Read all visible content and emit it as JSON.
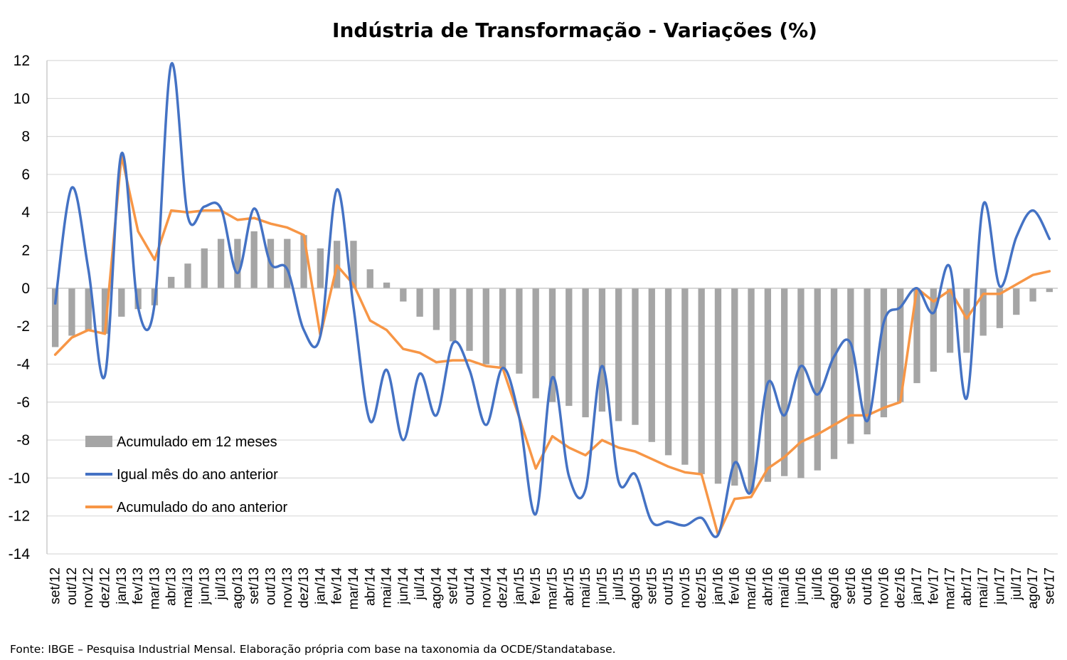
{
  "chart_data": {
    "type": "bar+line",
    "title": "Indústria de Transformação - Variações (%)",
    "source": "Fonte: IBGE – Pesquisa Industrial Mensal. Elaboração própria com base na taxonomia da OCDE/Standatabase.",
    "ylim": [
      -14,
      12
    ],
    "yticks": [
      "12",
      "10",
      "8",
      "6",
      "4",
      "2",
      "0",
      "-2",
      "-4",
      "-6",
      "-8",
      "-10",
      "-12",
      "-14"
    ],
    "ytick_values": [
      12,
      10,
      8,
      6,
      4,
      2,
      0,
      -2,
      -4,
      -6,
      -8,
      -10,
      -12,
      -14
    ],
    "grid": true,
    "legend_position": "bottom-left",
    "categories": [
      "set/12",
      "out/12",
      "nov/12",
      "dez/12",
      "jan/13",
      "fev/13",
      "mar/13",
      "abr/13",
      "mai/13",
      "jun/13",
      "jul/13",
      "ago/13",
      "set/13",
      "out/13",
      "nov/13",
      "dez/13",
      "jan/14",
      "fev/14",
      "mar/14",
      "abr/14",
      "mai/14",
      "jun/14",
      "jul/14",
      "ago/14",
      "set/14",
      "out/14",
      "nov/14",
      "dez/14",
      "jan/15",
      "fev/15",
      "mar/15",
      "abr/15",
      "mai/15",
      "jun/15",
      "jul/15",
      "ago/15",
      "set/15",
      "out/15",
      "nov/15",
      "dez/15",
      "jan/16",
      "fev/16",
      "mar/16",
      "abr/16",
      "mai/16",
      "jun/16",
      "jul/16",
      "ago/16",
      "set/16",
      "out/16",
      "nov/16",
      "dez/16",
      "jan/17",
      "fev/17",
      "mar/17",
      "abr/17",
      "mai/17",
      "jun/17",
      "jul/17",
      "ago/17",
      "set/17"
    ],
    "series": [
      {
        "name": "Acumulado em 12 meses",
        "kind": "bar",
        "color": "#A5A5A5",
        "values": [
          -3.1,
          -2.5,
          -2.2,
          -2.4,
          -1.5,
          -1.1,
          -0.9,
          0.6,
          1.3,
          2.1,
          2.6,
          2.6,
          3.0,
          2.6,
          2.6,
          2.8,
          2.1,
          2.5,
          2.5,
          1.0,
          0.3,
          -0.7,
          -1.5,
          -2.2,
          -2.8,
          -3.3,
          -4.0,
          -4.2,
          -4.5,
          -5.8,
          -6.0,
          -6.2,
          -6.8,
          -6.5,
          -7.0,
          -7.2,
          -8.1,
          -8.8,
          -9.3,
          -9.8,
          -10.3,
          -10.4,
          -10.8,
          -10.2,
          -9.9,
          -10.0,
          -9.6,
          -9.0,
          -8.2,
          -7.7,
          -6.8,
          -6.0,
          -5.0,
          -4.4,
          -3.4,
          -3.4,
          -2.5,
          -2.1,
          -1.4,
          -0.7,
          -0.2
        ]
      },
      {
        "name": "Igual mês do ano anterior",
        "kind": "line",
        "color": "#4472C4",
        "values": [
          -0.8,
          5.3,
          1.0,
          -4.6,
          7.1,
          -1.0,
          -0.8,
          11.8,
          3.8,
          4.3,
          4.2,
          0.8,
          4.2,
          1.3,
          1.0,
          -2.2,
          -2.5,
          5.2,
          -1.0,
          -7.0,
          -4.3,
          -8.0,
          -4.5,
          -6.7,
          -2.9,
          -4.3,
          -7.2,
          -4.2,
          -6.8,
          -11.9,
          -4.7,
          -9.9,
          -10.6,
          -4.1,
          -10.2,
          -9.8,
          -12.3,
          -12.3,
          -12.5,
          -12.1,
          -13.0,
          -9.2,
          -10.7,
          -5.0,
          -6.7,
          -4.1,
          -5.6,
          -3.6,
          -2.9,
          -7.0,
          -1.8,
          -1.0,
          0.0,
          -1.3,
          1.1,
          -5.8,
          4.4,
          0.1,
          2.7,
          4.1,
          2.6
        ]
      },
      {
        "name": "Acumulado do ano anterior",
        "kind": "line",
        "color": "#F79646",
        "values": [
          -3.5,
          -2.6,
          -2.2,
          -2.4,
          7.0,
          3.0,
          1.5,
          4.1,
          4.0,
          4.1,
          4.1,
          3.6,
          3.7,
          3.4,
          3.2,
          2.8,
          -2.5,
          1.2,
          0.2,
          -1.7,
          -2.2,
          -3.2,
          -3.4,
          -3.9,
          -3.8,
          -3.8,
          -4.1,
          -4.2,
          -6.8,
          -9.5,
          -7.8,
          -8.4,
          -8.8,
          -8.0,
          -8.4,
          -8.6,
          -9.0,
          -9.4,
          -9.7,
          -9.8,
          -13.0,
          -11.1,
          -11.0,
          -9.5,
          -8.9,
          -8.1,
          -7.7,
          -7.2,
          -6.7,
          -6.7,
          -6.3,
          -6.0,
          0.0,
          -0.7,
          -0.1,
          -1.6,
          -0.3,
          -0.3,
          0.2,
          0.7,
          0.9
        ]
      }
    ]
  }
}
